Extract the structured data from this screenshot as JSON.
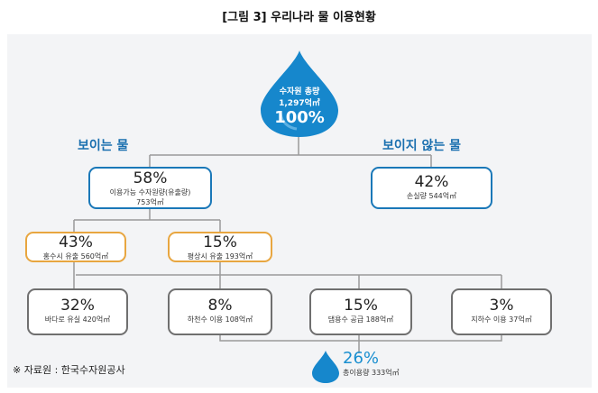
{
  "title": "[그림 3] 우리나라 물 이용현황",
  "colors": {
    "blue": "#1a78b8",
    "orange": "#e8a640",
    "gray": "#6f6f6f",
    "drop": "#1687cc"
  },
  "top_drop": {
    "line1": "수자원 총량",
    "line2": "1,297억㎥",
    "pct": "100%"
  },
  "headings": {
    "visible": "보이는 물",
    "invisible": "보이지 않는 물"
  },
  "boxes": {
    "usable": {
      "pct": "58%",
      "line1": "이용가능 수자원량(유출량)",
      "line2": "753억㎥"
    },
    "loss": {
      "pct": "42%",
      "line1": "손실량 544억㎥"
    },
    "flood": {
      "pct": "43%",
      "line1": "홍수시 유출 560억㎥"
    },
    "normal": {
      "pct": "15%",
      "line1": "평상시 유출 193억㎥"
    },
    "sea": {
      "pct": "32%",
      "line1": "바다로 유실 420억㎥"
    },
    "river": {
      "pct": "8%",
      "line1": "하천수 이용 108억㎥"
    },
    "dam": {
      "pct": "15%",
      "line1": "댐용수 공급 188억㎥"
    },
    "ground": {
      "pct": "3%",
      "line1": "지하수 이용 37억㎥"
    }
  },
  "total_usage": {
    "pct": "26%",
    "label": "총이용량 333억㎥"
  },
  "source": "※ 자료원 : 한국수자원공사"
}
